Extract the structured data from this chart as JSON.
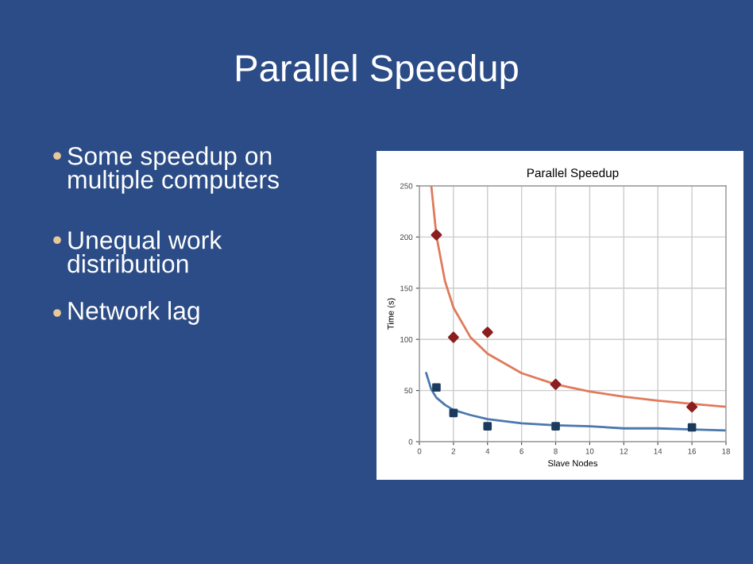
{
  "chart_data": {
    "type": "scatter",
    "title": "Parallel Speedup",
    "xlabel": "Slave Nodes",
    "ylabel": "Time (s)",
    "xlim": [
      0,
      18
    ],
    "xticks": [
      0,
      2,
      4,
      6,
      8,
      10,
      12,
      14,
      16,
      18
    ],
    "ylim": [
      0,
      250
    ],
    "yticks": [
      0,
      50,
      100,
      150,
      200,
      250
    ],
    "grid": true,
    "legend": false,
    "series": [
      {
        "type": "line",
        "color": "#e07a5a",
        "marker": "none",
        "x": [
          0.7,
          1,
          1.5,
          2,
          3,
          4,
          6,
          8,
          10,
          12,
          14,
          16,
          18
        ],
        "values": [
          250,
          201,
          157,
          131,
          102,
          86,
          67,
          56,
          49,
          44,
          40,
          37,
          34
        ]
      },
      {
        "type": "line",
        "color": "#4a78ad",
        "marker": "none",
        "x": [
          0.4,
          0.7,
          1,
          1.5,
          2,
          3,
          4,
          6,
          8,
          10,
          12,
          14,
          16,
          18
        ],
        "values": [
          67,
          51,
          43,
          36,
          31,
          26,
          22,
          18,
          16,
          15,
          13,
          13,
          12,
          11
        ]
      },
      {
        "color": "#8b1e1e",
        "marker": "diamond",
        "x": [
          1,
          2,
          4,
          8,
          16
        ],
        "values": [
          202,
          102,
          107,
          56,
          34
        ]
      },
      {
        "color": "#1c3a5e",
        "marker": "square",
        "x": [
          1,
          2,
          4,
          8,
          16
        ],
        "values": [
          53,
          28,
          15,
          15,
          14
        ]
      }
    ],
    "annotations": [
      "Parallel Speedup",
      "Some speedup on\nmultiple computers",
      "Unequal work\ndistribution",
      "Network lag"
    ]
  }
}
